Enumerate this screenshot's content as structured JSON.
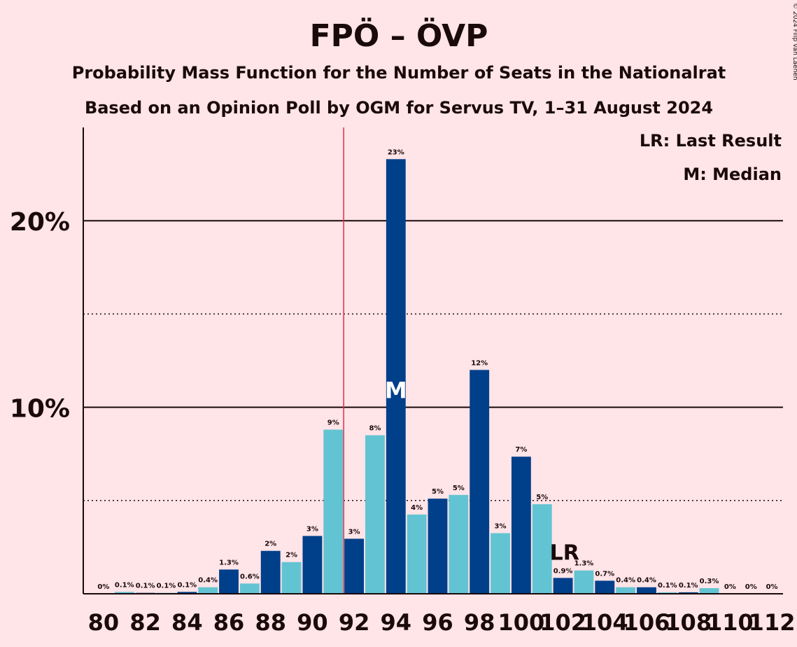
{
  "chart_data": {
    "type": "bar",
    "title": "FPÖ – ÖVP",
    "subtitle1": "Probability Mass Function for the Number of Seats in the Nationalrat",
    "subtitle2": "Based on an Opinion Poll by OGM for Servus TV, 1–31 August 2024",
    "copyright": "© 2024 Filip van Laenen",
    "legend_lr": "LR: Last Result",
    "legend_m": "M: Median",
    "median_marker": "M",
    "last_result_marker": "LR",
    "last_result_seats": 102,
    "median_seats": 94,
    "majority_line_seats": 92,
    "ylim": [
      0,
      25
    ],
    "y_ticks": [
      {
        "value": 10,
        "label": "10%"
      },
      {
        "value": 20,
        "label": "20%"
      }
    ],
    "dotted_lines": [
      5,
      15
    ],
    "x_tick_labels": [
      "80",
      "82",
      "84",
      "86",
      "88",
      "90",
      "92",
      "94",
      "96",
      "98",
      "100",
      "102",
      "104",
      "106",
      "108",
      "110",
      "112"
    ],
    "bars": [
      {
        "seats": 80,
        "value": 0.0,
        "label": "0%"
      },
      {
        "seats": 81,
        "value": 0.1,
        "label": "0.1%"
      },
      {
        "seats": 82,
        "value": 0.05,
        "label": "0.1%"
      },
      {
        "seats": 83,
        "value": 0.05,
        "label": "0.1%"
      },
      {
        "seats": 84,
        "value": 0.1,
        "label": "0.1%"
      },
      {
        "seats": 85,
        "value": 0.35,
        "label": "0.4%"
      },
      {
        "seats": 86,
        "value": 1.3,
        "label": "1.3%"
      },
      {
        "seats": 87,
        "value": 0.55,
        "label": "0.6%"
      },
      {
        "seats": 88,
        "value": 2.3,
        "label": "2%"
      },
      {
        "seats": 89,
        "value": 1.7,
        "label": "2%"
      },
      {
        "seats": 90,
        "value": 3.1,
        "label": "3%"
      },
      {
        "seats": 91,
        "value": 8.8,
        "label": "9%"
      },
      {
        "seats": 92,
        "value": 2.95,
        "label": "3%"
      },
      {
        "seats": 93,
        "value": 8.5,
        "label": "8%"
      },
      {
        "seats": 94,
        "value": 23.3,
        "label": "23%"
      },
      {
        "seats": 95,
        "value": 4.25,
        "label": "4%"
      },
      {
        "seats": 96,
        "value": 5.1,
        "label": "5%"
      },
      {
        "seats": 97,
        "value": 5.3,
        "label": "5%"
      },
      {
        "seats": 98,
        "value": 12.0,
        "label": "12%"
      },
      {
        "seats": 99,
        "value": 3.25,
        "label": "3%"
      },
      {
        "seats": 100,
        "value": 7.35,
        "label": "7%"
      },
      {
        "seats": 101,
        "value": 4.8,
        "label": "5%"
      },
      {
        "seats": 102,
        "value": 0.85,
        "label": "0.9%"
      },
      {
        "seats": 103,
        "value": 1.25,
        "label": "1.3%"
      },
      {
        "seats": 104,
        "value": 0.7,
        "label": "0.7%"
      },
      {
        "seats": 105,
        "value": 0.35,
        "label": "0.4%"
      },
      {
        "seats": 106,
        "value": 0.35,
        "label": "0.4%"
      },
      {
        "seats": 107,
        "value": 0.08,
        "label": "0.1%"
      },
      {
        "seats": 108,
        "value": 0.08,
        "label": "0.1%"
      },
      {
        "seats": 109,
        "value": 0.3,
        "label": "0.3%"
      },
      {
        "seats": 110,
        "value": 0.0,
        "label": "0%"
      },
      {
        "seats": 111,
        "value": 0.0,
        "label": "0%"
      },
      {
        "seats": 112,
        "value": 0.0,
        "label": "0%"
      }
    ],
    "colors": {
      "background": "#ffe4e8",
      "dark_bar": "#003f8a",
      "light_bar": "#62c4d2",
      "majority_line": "#e0304a",
      "text": "#1a0a0a"
    }
  }
}
